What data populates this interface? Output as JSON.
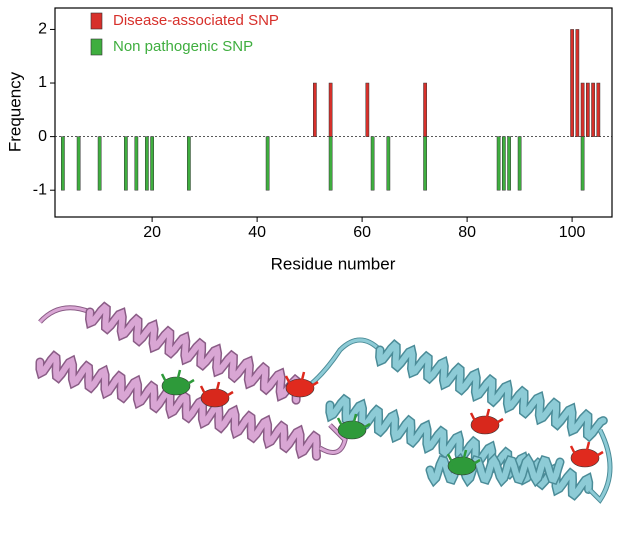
{
  "chart_data": {
    "type": "bar",
    "xlabel": "Residue number",
    "ylabel": "Frequency",
    "xlim": [
      1.5,
      107.6
    ],
    "xticks": [
      20,
      40,
      60,
      80,
      100
    ],
    "ylim": [
      -1.5,
      2.4
    ],
    "yticks": [
      -1,
      0,
      1,
      2
    ],
    "zero_line": "dashed",
    "legend": "upper left",
    "series": [
      {
        "name": "Disease-associated SNP",
        "color": "#d7302b",
        "x": [
          51,
          54,
          61,
          72,
          100,
          101,
          102,
          103,
          104,
          105
        ],
        "values": [
          1,
          1,
          1,
          1,
          2,
          2,
          1,
          1,
          1,
          1
        ]
      },
      {
        "name": "Non pathogenic SNP",
        "color": "#3fae3f",
        "x": [
          3,
          6,
          10,
          15,
          17,
          19,
          20,
          27,
          42,
          54,
          62,
          65,
          72,
          86,
          87,
          88,
          90,
          102
        ],
        "values": [
          -1,
          -1,
          -1,
          -1,
          -1,
          -1,
          -1,
          -1,
          -1,
          -1,
          -1,
          -1,
          -1,
          -1,
          -1,
          -1,
          -1,
          -1
        ]
      }
    ]
  }
}
